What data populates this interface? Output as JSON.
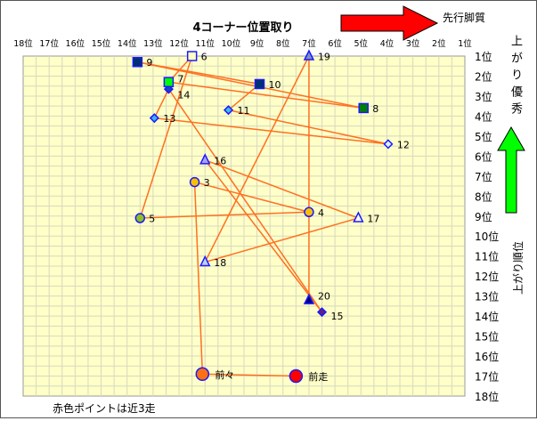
{
  "chart_data": {
    "type": "scatter",
    "title": "4コーナー位置取り",
    "x_axis": {
      "ticks": [
        "18位",
        "17位",
        "16位",
        "15位",
        "14位",
        "13位",
        "12位",
        "11位",
        "10位",
        "9位",
        "8位",
        "7位",
        "6位",
        "5位",
        "4位",
        "3位",
        "2位",
        "1位"
      ],
      "range": [
        18,
        1
      ],
      "meaning": "4コーナー位置取り"
    },
    "y_axis": {
      "ticks": [
        "1位",
        "2位",
        "3位",
        "4位",
        "5位",
        "6位",
        "7位",
        "8位",
        "9位",
        "10位",
        "11位",
        "12位",
        "13位",
        "14位",
        "15位",
        "16位",
        "17位",
        "18位"
      ],
      "range": [
        1,
        18
      ],
      "label": "上がり順位"
    },
    "grid": true,
    "connect_in_order": true,
    "points": [
      {
        "label": "前走",
        "x": 7.5,
        "y": 17.0,
        "shape": "circle-large",
        "color": "#ff0000"
      },
      {
        "label": "前々",
        "x": 11.1,
        "y": 16.9,
        "shape": "circle-large",
        "color": "#ff7010"
      },
      {
        "label": "3",
        "x": 11.4,
        "y": 7.3,
        "shape": "circle",
        "color": "#f8c000"
      },
      {
        "label": "4",
        "x": 7.0,
        "y": 8.8,
        "shape": "circle",
        "color": "#f8c000"
      },
      {
        "label": "5",
        "x": 13.5,
        "y": 9.1,
        "shape": "circle",
        "color": "#90c020"
      },
      {
        "label": "6",
        "x": 11.5,
        "y": 1.0,
        "shape": "square",
        "color": "#ffffc0"
      },
      {
        "label": "7",
        "x": 12.4,
        "y": 2.3,
        "shape": "square",
        "color": "#00ff00"
      },
      {
        "label": "8",
        "x": 4.9,
        "y": 3.6,
        "shape": "square",
        "color": "#008000"
      },
      {
        "label": "9",
        "x": 13.6,
        "y": 1.3,
        "shape": "square",
        "color": "#003070"
      },
      {
        "label": "10",
        "x": 8.9,
        "y": 2.4,
        "shape": "square",
        "color": "#003070"
      },
      {
        "label": "11",
        "x": 10.1,
        "y": 3.7,
        "shape": "diamond",
        "color": "#40c0e0"
      },
      {
        "label": "12",
        "x": 3.95,
        "y": 5.4,
        "shape": "diamond",
        "color": "#e0f0ff"
      },
      {
        "label": "13",
        "x": 12.95,
        "y": 4.1,
        "shape": "diamond",
        "color": "#40b0ff"
      },
      {
        "label": "14",
        "x": 12.4,
        "y": 2.65,
        "shape": "diamond",
        "color": "#2040c0"
      },
      {
        "label": "15",
        "x": 6.5,
        "y": 13.8,
        "shape": "diamond",
        "color": "#602080"
      },
      {
        "label": "16",
        "x": 11.0,
        "y": 6.2,
        "shape": "triangle",
        "color": "#b0a0ff"
      },
      {
        "label": "17",
        "x": 5.1,
        "y": 9.1,
        "shape": "triangle",
        "color": "#ffffff"
      },
      {
        "label": "18",
        "x": 11.0,
        "y": 11.3,
        "shape": "triangle",
        "color": "#c0d0ff"
      },
      {
        "label": "19",
        "x": 7.0,
        "y": 1.0,
        "shape": "triangle",
        "color": "#8090c0"
      },
      {
        "label": "20",
        "x": 7.0,
        "y": 13.2,
        "shape": "triangle",
        "color": "#000080"
      }
    ],
    "annotations": {
      "top_arrow_label": "先行脚質",
      "right_top_label": "上がり優秀",
      "right_axis_label": "上がり順位",
      "footnote": "赤色ポイントは近3走"
    },
    "colors": {
      "plot_bg": "#ffffc8",
      "line": "#ff7020",
      "marker_border": "#1a1aff",
      "top_arrow": "#ff0000",
      "right_arrow": "#00ff00"
    }
  }
}
